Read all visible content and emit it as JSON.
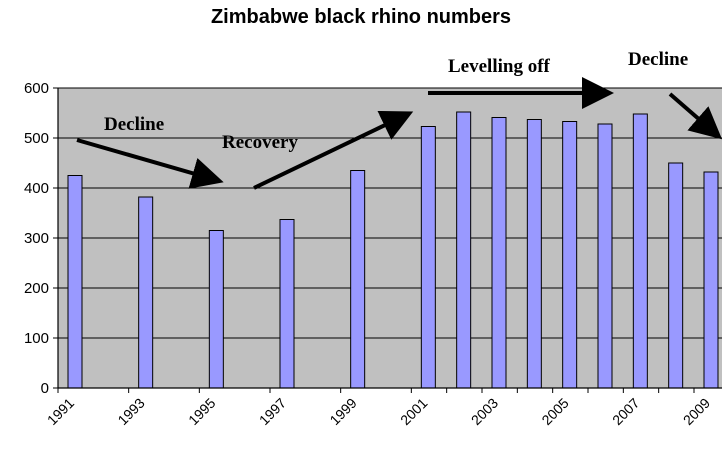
{
  "chart_data": {
    "type": "bar",
    "title": "Zimbabwe black rhino numbers",
    "xlabel": "",
    "ylabel": "",
    "ylim": [
      0,
      600
    ],
    "y_ticks": [
      "0",
      "100",
      "200",
      "300",
      "400",
      "500",
      "600"
    ],
    "x_tick_labels": [
      "1991",
      "1993",
      "1995",
      "1997",
      "1999",
      "2001",
      "2003",
      "2005",
      "2007",
      "2009"
    ],
    "x": [
      1991,
      1993,
      1995,
      1997,
      1999,
      2001,
      2002,
      2003,
      2004,
      2005,
      2006,
      2007,
      2008,
      2009
    ],
    "values": [
      425,
      382,
      315,
      337,
      435,
      523,
      552,
      541,
      537,
      533,
      528,
      548,
      450,
      432
    ],
    "grid": true,
    "colors": {
      "bar": "#9999ff",
      "plot_background": "#c0c0c0",
      "gridline": "#000000"
    },
    "annotations": [
      {
        "text": "Decline",
        "arrow": "down-right"
      },
      {
        "text": "Recovery",
        "arrow": "up-right"
      },
      {
        "text": "Levelling off",
        "arrow": "right"
      },
      {
        "text": "Decline",
        "arrow": "down-right"
      }
    ]
  }
}
